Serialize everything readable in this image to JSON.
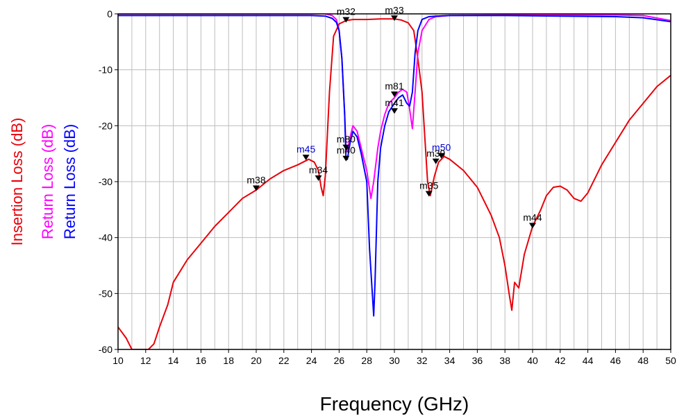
{
  "chart_data": {
    "type": "line",
    "title": "",
    "xlabel": "Frequency (GHz)",
    "ylabel_parts": [
      {
        "text": "Insertion Loss (dB)",
        "color": "#e8000a"
      },
      {
        "text": "Return Loss (dB)",
        "color": "#ff00ff"
      },
      {
        "text": "Return Loss (dB)",
        "color": "#0000ff"
      }
    ],
    "xlim": [
      10,
      50
    ],
    "ylim": [
      -60,
      0
    ],
    "xticks": [
      "10",
      "12",
      "14",
      "16",
      "18",
      "20",
      "22",
      "24",
      "26",
      "28",
      "30",
      "32",
      "34",
      "36",
      "38",
      "40",
      "42",
      "44",
      "46",
      "48",
      "50"
    ],
    "yticks": [
      "0",
      "-10",
      "-20",
      "-30",
      "-40",
      "-50",
      "-60"
    ],
    "grid": true,
    "series": [
      {
        "color": "#e8000a",
        "x": [
          10,
          10.6,
          11,
          11.6,
          12.2,
          12.6,
          13,
          13.6,
          14,
          15,
          16,
          17,
          18,
          19,
          20,
          21,
          22,
          23,
          23.8,
          24.2,
          24.5,
          24.7,
          24.85,
          25,
          25.3,
          25.6,
          26,
          26.5,
          27,
          28,
          29,
          30,
          30.5,
          31,
          31.4,
          31.7,
          32,
          32.2,
          32.4,
          32.6,
          32.9,
          33.2,
          33.6,
          34,
          35,
          36,
          37,
          37.6,
          38,
          38.3,
          38.5,
          38.7,
          39,
          39.4,
          40,
          40.6,
          41,
          41.5,
          42,
          42.5,
          43,
          43.5,
          44,
          45,
          46,
          47,
          48,
          49,
          50
        ],
        "y": [
          -56,
          -58,
          -60,
          -60,
          -60,
          -59,
          -56,
          -52,
          -48,
          -44,
          -41,
          -38,
          -35.5,
          -33,
          -31.5,
          -29.5,
          -28,
          -27,
          -26,
          -26.5,
          -28,
          -31,
          -32.5,
          -29,
          -14,
          -4,
          -1.8,
          -1.2,
          -1,
          -1,
          -0.9,
          -0.9,
          -1.1,
          -1.6,
          -3,
          -8,
          -14,
          -22,
          -30,
          -32.5,
          -29,
          -26.5,
          -25.5,
          -26,
          -28,
          -31,
          -36,
          -40,
          -45,
          -50,
          -53,
          -48,
          -49,
          -43,
          -38,
          -35,
          -32.5,
          -31,
          -30.8,
          -31.5,
          -33,
          -33.5,
          -32,
          -27,
          -23,
          -19,
          -16,
          -13,
          -11
        ]
      },
      {
        "color": "#ff00ff",
        "x": [
          10,
          14,
          18,
          22,
          24,
          25,
          25.5,
          25.8,
          26,
          26.2,
          26.4,
          26.5,
          26.6,
          26.8,
          27,
          27.3,
          27.6,
          28,
          28.3,
          28.5,
          28.8,
          29,
          29.3,
          29.6,
          30,
          30.3,
          30.6,
          30.9,
          31.1,
          31.3,
          31.5,
          31.7,
          32,
          32.5,
          33,
          34,
          38,
          42,
          46,
          48,
          50
        ],
        "y": [
          0,
          0,
          0,
          0,
          0,
          0,
          -0.3,
          -1,
          -3,
          -8,
          -18,
          -24,
          -24.5,
          -22,
          -20,
          -21,
          -24,
          -28,
          -33,
          -30,
          -24,
          -21,
          -18,
          -16,
          -15,
          -14,
          -13.5,
          -14,
          -17,
          -20.5,
          -14,
          -7,
          -3,
          -1,
          -0.5,
          -0.3,
          -0.2,
          -0.2,
          -0.2,
          -0.3,
          -1.2
        ]
      },
      {
        "color": "#0000ff",
        "x": [
          10,
          14,
          18,
          22,
          24,
          25,
          25.5,
          25.8,
          26,
          26.2,
          26.4,
          26.5,
          26.6,
          26.8,
          27,
          27.3,
          27.6,
          28,
          28.2,
          28.4,
          28.5,
          28.6,
          28.8,
          29,
          29.3,
          29.6,
          30,
          30.3,
          30.6,
          30.9,
          31.1,
          31.3,
          31.5,
          31.7,
          32,
          32.5,
          33,
          34,
          38,
          42,
          46,
          48,
          50
        ],
        "y": [
          -0.3,
          -0.3,
          -0.3,
          -0.3,
          -0.3,
          -0.4,
          -0.8,
          -1.5,
          -3,
          -8,
          -18,
          -26,
          -26,
          -23,
          -21,
          -22,
          -25,
          -30,
          -42,
          -50,
          -54,
          -48,
          -30,
          -24,
          -20,
          -17.5,
          -16,
          -15,
          -14.5,
          -16,
          -16.5,
          -14,
          -7,
          -3,
          -1,
          -0.5,
          -0.4,
          -0.3,
          -0.3,
          -0.4,
          -0.5,
          -0.7,
          -1.4
        ]
      }
    ],
    "markers": [
      {
        "name": "m32",
        "x": 26.5,
        "y": -1.2,
        "color": "#000000"
      },
      {
        "name": "m33",
        "x": 30.0,
        "y": -0.9,
        "color": "#000000"
      },
      {
        "name": "m81",
        "x": 30.0,
        "y": -14.5,
        "color": "#000000"
      },
      {
        "name": "m41",
        "x": 30.0,
        "y": -17.5,
        "color": "#000000"
      },
      {
        "name": "m80",
        "x": 26.5,
        "y": -24.0,
        "color": "#000000"
      },
      {
        "name": "m40",
        "x": 26.5,
        "y": -26.0,
        "color": "#000000"
      },
      {
        "name": "m45",
        "x": 23.6,
        "y": -25.8,
        "color": "#0000cc"
      },
      {
        "name": "m34",
        "x": 24.5,
        "y": -29.5,
        "color": "#000000"
      },
      {
        "name": "m38",
        "x": 20.0,
        "y": -31.3,
        "color": "#000000"
      },
      {
        "name": "m50",
        "x": 33.4,
        "y": -25.5,
        "color": "#0000cc"
      },
      {
        "name": "m39",
        "x": 33.0,
        "y": -26.5,
        "color": "#000000"
      },
      {
        "name": "m35",
        "x": 32.5,
        "y": -32.3,
        "color": "#000000"
      },
      {
        "name": "m44",
        "x": 40.0,
        "y": -38.0,
        "color": "#000000"
      }
    ]
  }
}
